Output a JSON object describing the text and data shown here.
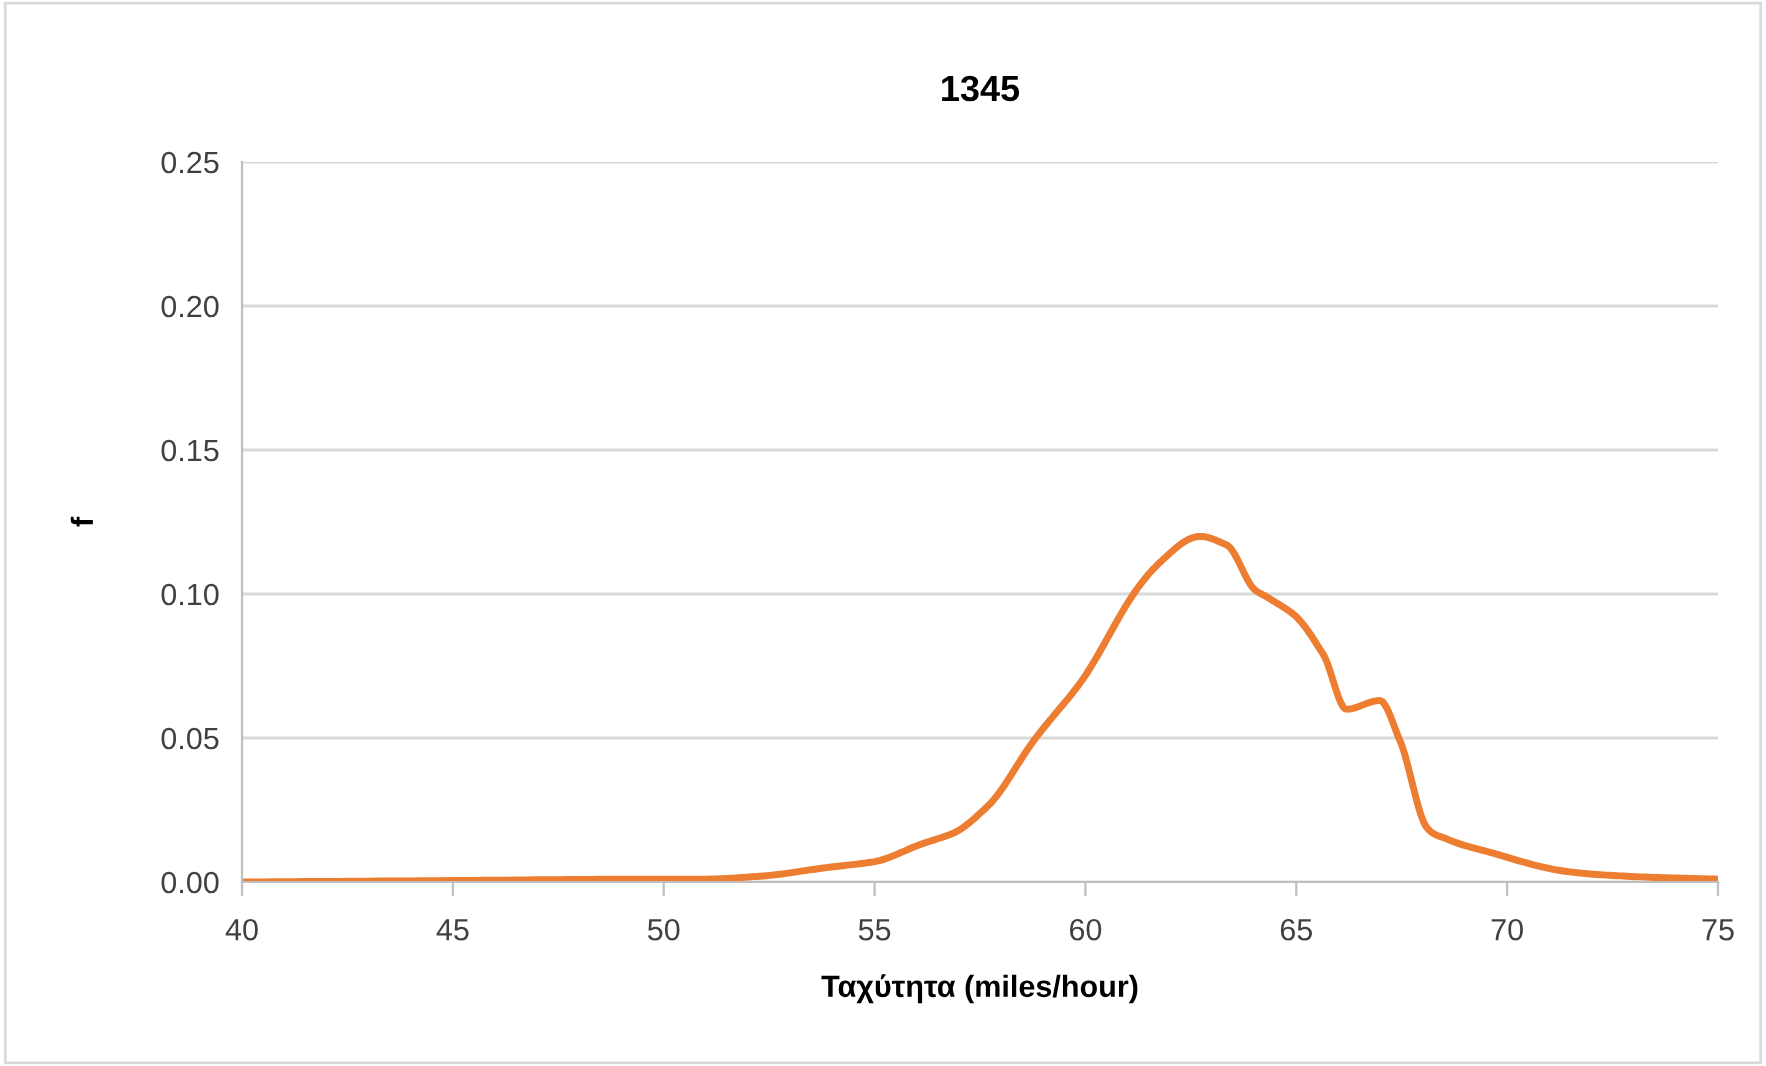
{
  "chart_data": {
    "type": "line",
    "title": "1345",
    "xlabel": "Ταχύτητα (miles/hour)",
    "ylabel": "f",
    "x": [
      40,
      45,
      50,
      51,
      52.28,
      53.86,
      54.97,
      56.08,
      56.87,
      57.66,
      58.77,
      59.87,
      61.14,
      61.77,
      62.72,
      63.35,
      63.98,
      64.3,
      64.93,
      65.64,
      66.19,
      66.98,
      67.46,
      68.09,
      68.56,
      69.67,
      71.25,
      72.83,
      75
    ],
    "series": [
      {
        "color": "#ed7d31",
        "values": [
          0.0,
          0.0005,
          0.001,
          0.001,
          0.002,
          0.005,
          0.007,
          0.013,
          0.017,
          0.026,
          0.049,
          0.069,
          0.1,
          0.111,
          0.12,
          0.117,
          0.102,
          0.099,
          0.093,
          0.079,
          0.06,
          0.063,
          0.049,
          0.019,
          0.015,
          0.01,
          0.004,
          0.002,
          0.001
        ]
      }
    ],
    "xlim": [
      40,
      75
    ],
    "xticks": [
      40,
      45,
      50,
      55,
      60,
      65,
      70,
      75
    ],
    "ylim": [
      0,
      0.25
    ],
    "yticks": [
      {
        "value": 0,
        "label": "0.00"
      },
      {
        "value": 0.05,
        "label": "0.05"
      },
      {
        "value": 0.1,
        "label": "0.10"
      },
      {
        "value": 0.15,
        "label": "0.15"
      },
      {
        "value": 0.2,
        "label": "0.20"
      },
      {
        "value": 0.25,
        "label": "0.25"
      }
    ],
    "grid": "y",
    "marker": "none",
    "line_style": "solid"
  }
}
